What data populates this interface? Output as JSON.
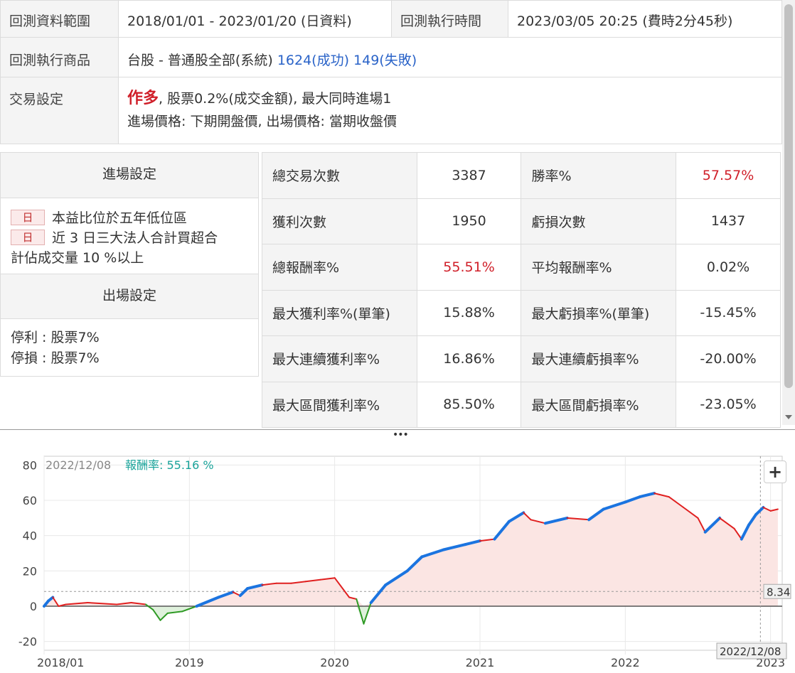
{
  "info": {
    "range_label": "回測資料範圍",
    "range_value": "2018/01/01 - 2023/01/20 (日資料)",
    "exec_time_label": "回測執行時間",
    "exec_time_value": "2023/03/05 20:25 (費時2分45秒)",
    "product_label": "回測執行商品",
    "product_value": "台股 - 普通股全部(系統)",
    "success_text": "1624(成功)",
    "fail_text": "149(失敗)",
    "trade_label": "交易設定",
    "trade_mode": "作多",
    "trade_detail": ", 股票0.2%(成交金額), 最大同時進場1",
    "trade_price": "進場價格: 下期開盤價, 出場價格: 當期收盤價"
  },
  "entry": {
    "title": "進場設定",
    "chip": "日",
    "rule1": "本益比位於五年低位區",
    "rule2_a": "近 3 日三大法人合計買超合",
    "rule2_b": "計佔成交量 10 %以上"
  },
  "exit": {
    "title": "出場設定",
    "take_profit": "停利 : 股票7%",
    "stop_loss": "停損 : 股票7%"
  },
  "stats": [
    {
      "l1": "總交易次數",
      "v1": "3387",
      "l2": "勝率%",
      "v2": "57.57%",
      "red2": true
    },
    {
      "l1": "獲利次數",
      "v1": "1950",
      "l2": "虧損次數",
      "v2": "1437"
    },
    {
      "l1": "總報酬率%",
      "v1": "55.51%",
      "red1": true,
      "l2": "平均報酬率%",
      "v2": "0.02%"
    },
    {
      "l1": "最大獲利率%(單筆)",
      "v1": "15.88%",
      "l2": "最大虧損率%(單筆)",
      "v2": "-15.45%"
    },
    {
      "l1": "最大連續獲利率%",
      "v1": "16.86%",
      "l2": "最大連續虧損率%",
      "v2": "-20.00%"
    },
    {
      "l1": "最大區間獲利率%",
      "v1": "85.50%",
      "l2": "最大區間虧損率%",
      "v2": "-23.05%"
    }
  ],
  "chart_data": {
    "type": "line",
    "tooltip_date": "2022/12/08",
    "tooltip_label": "報酬率:",
    "tooltip_value": "55.16 %",
    "ylim": [
      -25,
      85
    ],
    "yticks": [
      "80",
      "60",
      "40",
      "20",
      "0",
      "-20"
    ],
    "xticks": [
      "2018/01",
      "2019",
      "2020",
      "2021",
      "2022",
      "2023"
    ],
    "crosshair_value": "8.34",
    "crosshair_date": "2022/12/08",
    "colors": {
      "line": "#e02020",
      "up": "#1b74e0",
      "down": "#2e9a24",
      "fill": "#fbe5e3"
    },
    "series": [
      {
        "values": [
          [
            2018.0,
            0
          ],
          [
            2018.03,
            3
          ],
          [
            2018.06,
            5
          ],
          [
            2018.1,
            0
          ],
          [
            2018.15,
            1
          ],
          [
            2018.3,
            2
          ],
          [
            2018.5,
            1
          ],
          [
            2018.6,
            2
          ],
          [
            2018.7,
            1
          ],
          [
            2018.75,
            -2
          ],
          [
            2018.8,
            -8
          ],
          [
            2018.85,
            -4
          ],
          [
            2018.95,
            -3
          ],
          [
            2019.05,
            0
          ],
          [
            2019.2,
            5
          ],
          [
            2019.3,
            8
          ],
          [
            2019.35,
            6
          ],
          [
            2019.4,
            10
          ],
          [
            2019.5,
            12
          ],
          [
            2019.6,
            13
          ],
          [
            2019.7,
            13
          ],
          [
            2019.8,
            14
          ],
          [
            2019.9,
            15
          ],
          [
            2020.0,
            16
          ],
          [
            2020.1,
            5
          ],
          [
            2020.15,
            4
          ],
          [
            2020.2,
            -10
          ],
          [
            2020.25,
            2
          ],
          [
            2020.35,
            12
          ],
          [
            2020.5,
            20
          ],
          [
            2020.6,
            28
          ],
          [
            2020.75,
            32
          ],
          [
            2020.9,
            35
          ],
          [
            2021.0,
            37
          ],
          [
            2021.1,
            38
          ],
          [
            2021.2,
            48
          ],
          [
            2021.3,
            53
          ],
          [
            2021.35,
            49
          ],
          [
            2021.45,
            47
          ],
          [
            2021.6,
            50
          ],
          [
            2021.75,
            49
          ],
          [
            2021.85,
            55
          ],
          [
            2022.0,
            59
          ],
          [
            2022.1,
            62
          ],
          [
            2022.2,
            64
          ],
          [
            2022.3,
            62
          ],
          [
            2022.4,
            56
          ],
          [
            2022.5,
            50
          ],
          [
            2022.55,
            42
          ],
          [
            2022.65,
            50
          ],
          [
            2022.75,
            44
          ],
          [
            2022.8,
            38
          ],
          [
            2022.85,
            46
          ],
          [
            2022.9,
            52
          ],
          [
            2022.95,
            56
          ],
          [
            2023.0,
            54
          ],
          [
            2023.05,
            55
          ]
        ]
      }
    ]
  }
}
